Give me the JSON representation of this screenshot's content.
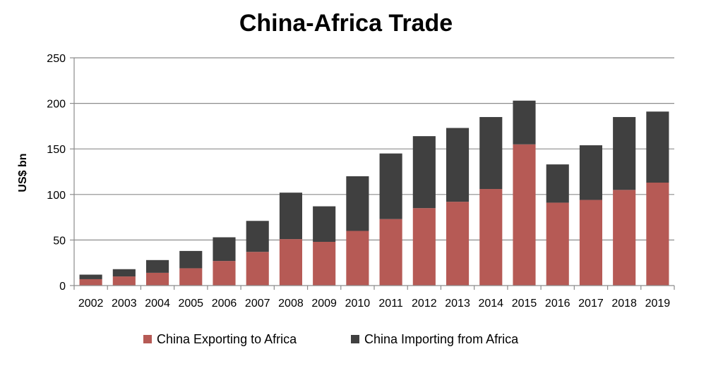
{
  "chart_data": {
    "type": "bar",
    "stacked": true,
    "title": "China-Africa Trade",
    "xlabel": "",
    "ylabel": "US$ bn",
    "ylim": [
      0,
      250
    ],
    "yticks": [
      0,
      50,
      100,
      150,
      200,
      250
    ],
    "grid": true,
    "legend_position": "bottom",
    "categories": [
      "2002",
      "2003",
      "2004",
      "2005",
      "2006",
      "2007",
      "2008",
      "2009",
      "2010",
      "2011",
      "2012",
      "2013",
      "2014",
      "2015",
      "2016",
      "2017",
      "2018",
      "2019"
    ],
    "series": [
      {
        "name": "China Exporting to Africa",
        "color": "#b65a55",
        "values": [
          7,
          10,
          14,
          19,
          27,
          37,
          51,
          48,
          60,
          73,
          85,
          92,
          106,
          155,
          91,
          94,
          105,
          113
        ]
      },
      {
        "name": "China Importing from Africa",
        "color": "#404040",
        "values": [
          5,
          8,
          14,
          19,
          26,
          34,
          51,
          39,
          60,
          72,
          79,
          81,
          79,
          48,
          42,
          60,
          80,
          78
        ]
      }
    ]
  }
}
